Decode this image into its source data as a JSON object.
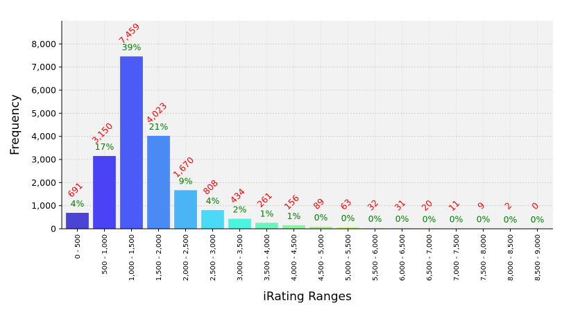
{
  "chart_data": {
    "type": "bar",
    "title": "",
    "xlabel": "iRating Ranges",
    "ylabel": "Frequency",
    "ylim": [
      0,
      9000
    ],
    "yticks": [
      0,
      1000,
      2000,
      3000,
      4000,
      5000,
      6000,
      7000,
      8000
    ],
    "ytick_labels": [
      "0",
      "1,000",
      "2,000",
      "3,000",
      "4,000",
      "5,000",
      "6,000",
      "7,000",
      "8,000"
    ],
    "grid": true,
    "categories": [
      "0 - 500",
      "500 - 1,000",
      "1,000 - 1,500",
      "1,500 - 2,000",
      "2,000 - 2,500",
      "2,500 - 3,000",
      "3,000 - 3,500",
      "3,500 - 4,000",
      "4,000 - 4,500",
      "4,500 - 5,000",
      "5,000 - 5,500",
      "5,500 - 6,000",
      "6,000 - 6,500",
      "6,500 - 7,000",
      "7,000 - 7,500",
      "7,500 - 8,000",
      "8,000 - 8,500",
      "8,500 - 9,000"
    ],
    "values": [
      691,
      3150,
      7459,
      4023,
      1670,
      808,
      434,
      261,
      156,
      89,
      63,
      32,
      31,
      20,
      11,
      9,
      2,
      0
    ],
    "count_labels": [
      "691",
      "3,150",
      "7,459",
      "4,023",
      "1,670",
      "808",
      "434",
      "261",
      "156",
      "89",
      "63",
      "32",
      "31",
      "20",
      "11",
      "9",
      "2",
      "0"
    ],
    "percent_labels": [
      "4%",
      "17%",
      "39%",
      "21%",
      "9%",
      "4%",
      "2%",
      "1%",
      "1%",
      "0%",
      "0%",
      "0%",
      "0%",
      "0%",
      "0%",
      "0%",
      "0%",
      "0%"
    ],
    "colors": [
      "#4a43d3",
      "#4a43f5",
      "#4a5cf5",
      "#4a8af5",
      "#4ab4f5",
      "#4adaf5",
      "#4af5e0",
      "#6af5c0",
      "#8af5a0",
      "#a8f588",
      "#c4f575",
      "#dff565",
      "#f5f060",
      "#f5d860",
      "#f5c060",
      "#f5a860",
      "#f59060",
      "#f57860"
    ],
    "count_label_color": "#ff0000",
    "percent_label_color": "#008000",
    "plot_background": "#f2f2f2"
  }
}
